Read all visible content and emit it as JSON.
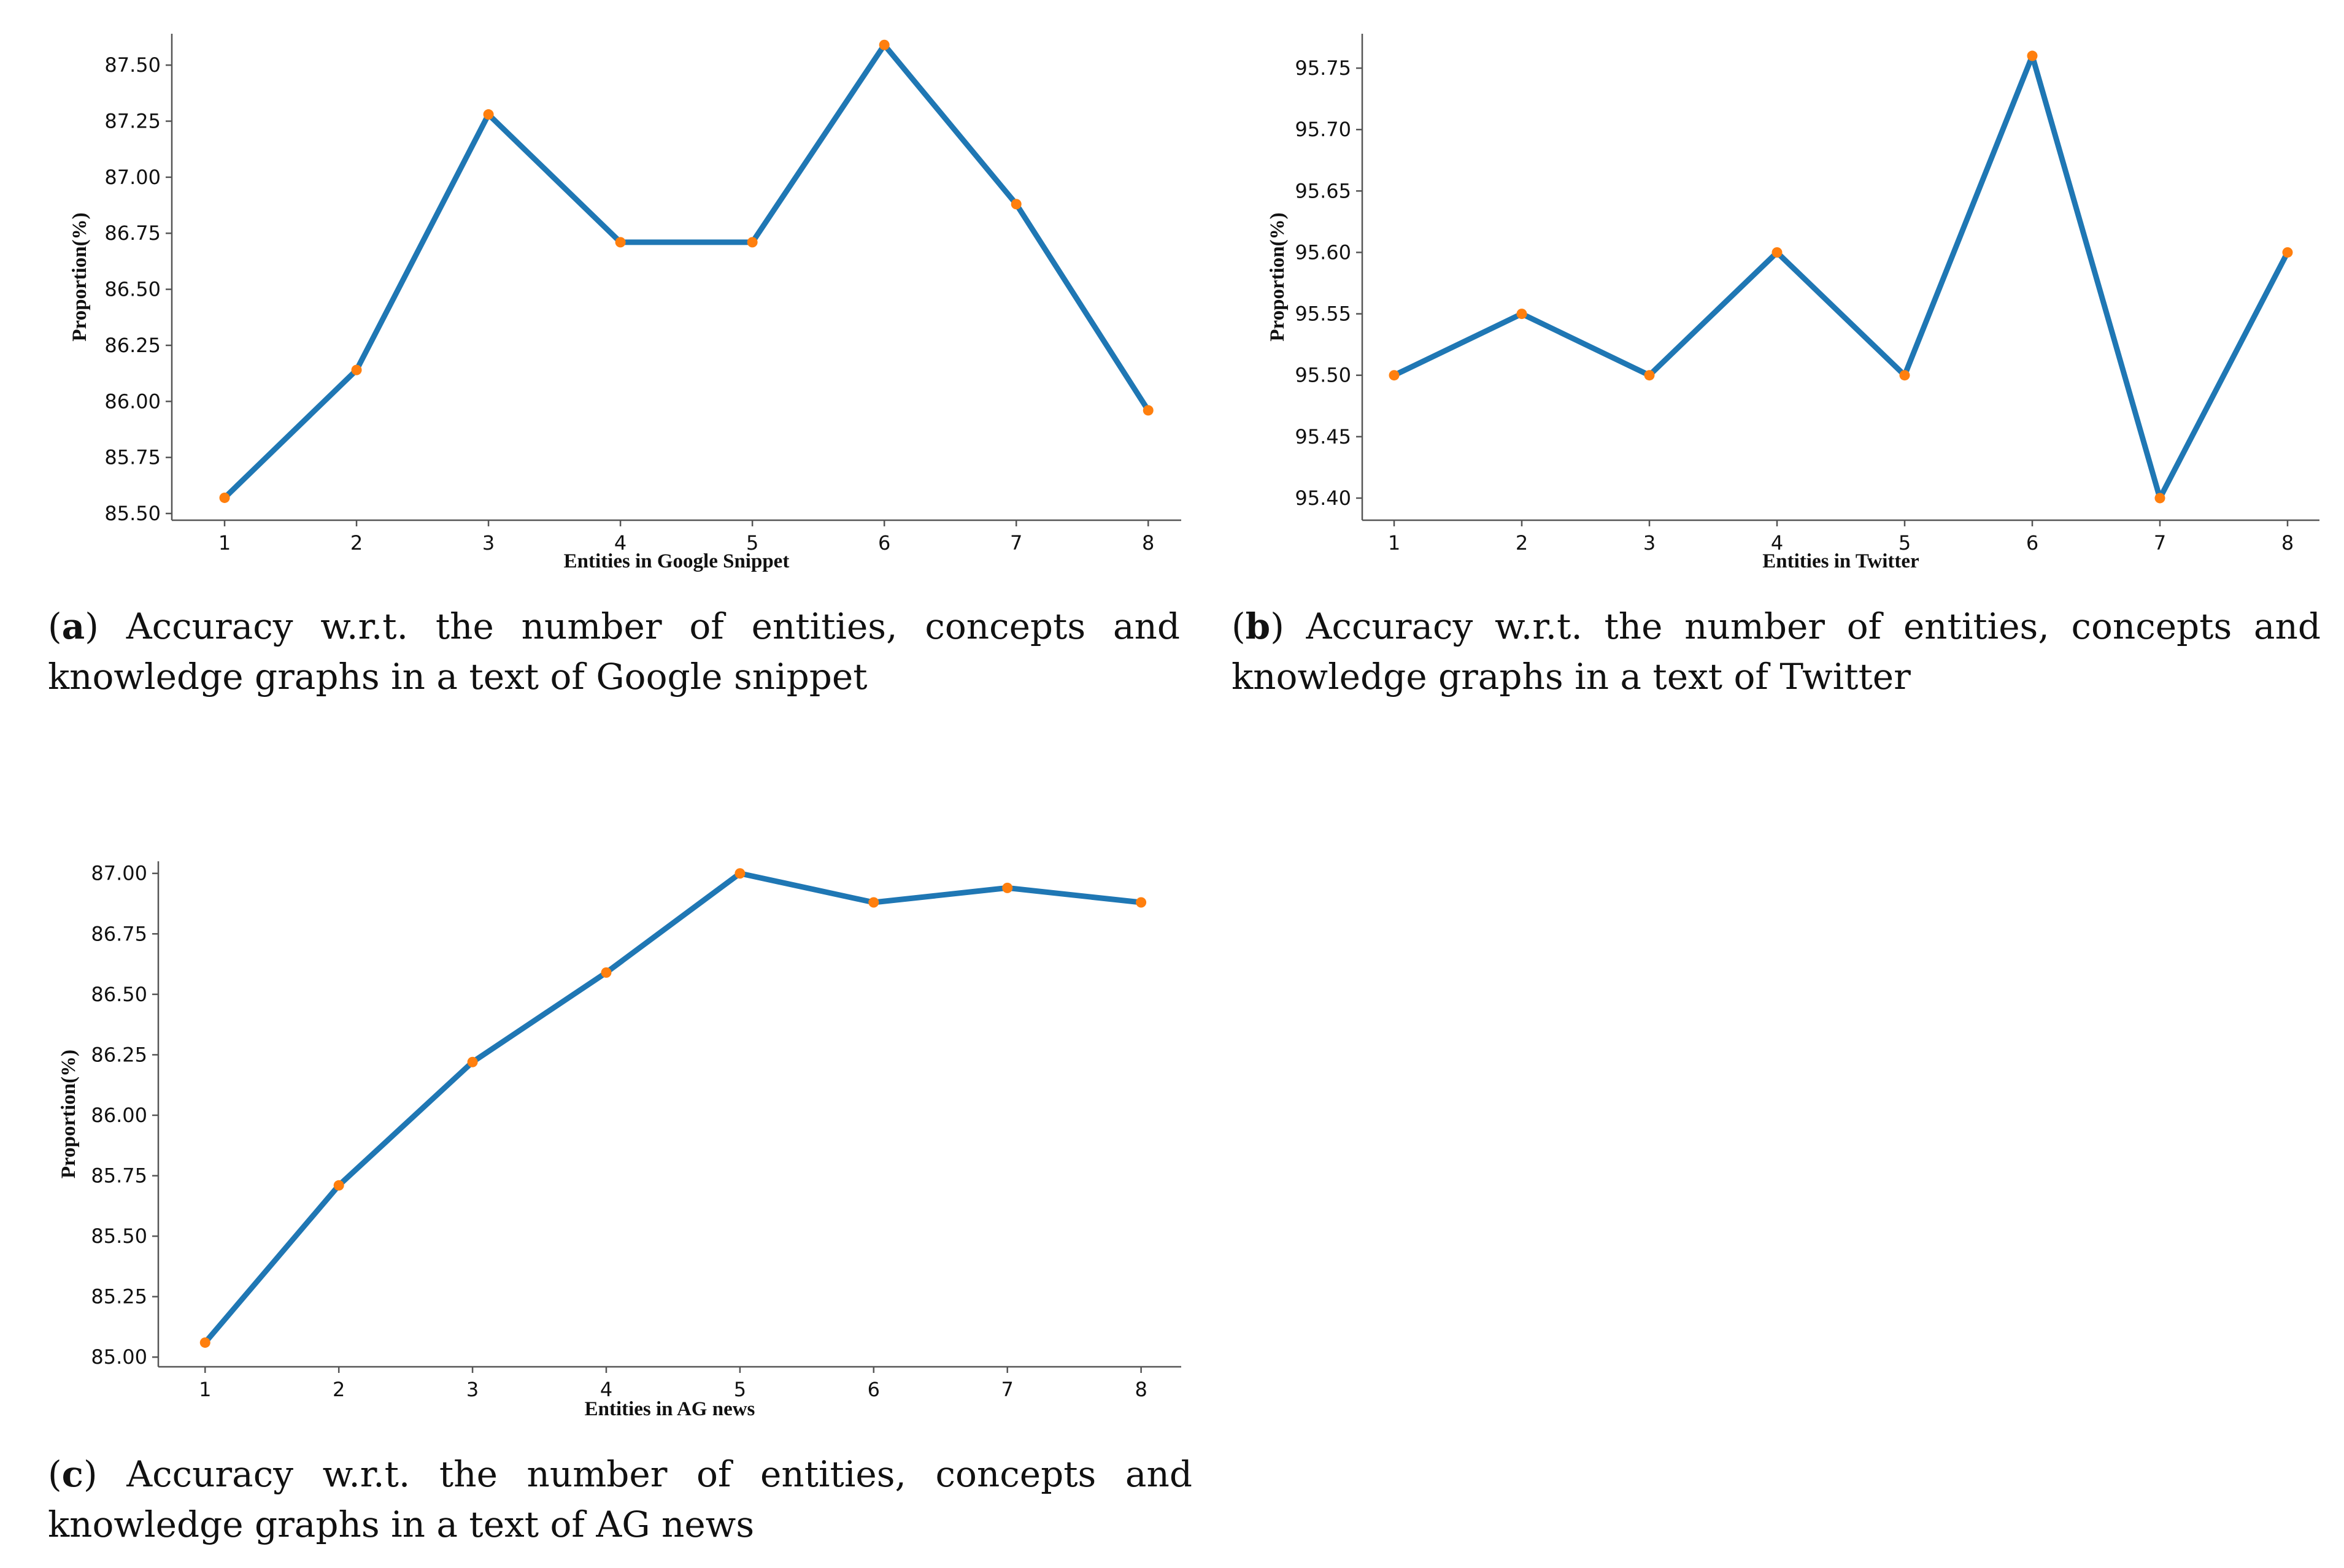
{
  "colors": {
    "line": "#1f77b4",
    "marker": "#ff7f0e",
    "axis": "#555555"
  },
  "chart_data": [
    {
      "type": "line",
      "ylabel": "Proportion(%)",
      "xlabel": "Entities in Google Snippet",
      "x": [
        1,
        2,
        3,
        4,
        5,
        6,
        7,
        8
      ],
      "series": [
        {
          "values": [
            85.57,
            86.14,
            87.28,
            86.71,
            86.71,
            87.59,
            86.88,
            85.96
          ]
        }
      ],
      "xlim": [
        0.6,
        8.25
      ],
      "ylim": [
        85.47,
        87.64
      ],
      "yticks": [
        85.5,
        85.75,
        86.0,
        86.25,
        86.5,
        86.75,
        87.0,
        87.25,
        87.5
      ],
      "ytick_labels": [
        "85.50",
        "85.75",
        "86.00",
        "86.25",
        "86.50",
        "86.75",
        "87.00",
        "87.25",
        "87.50"
      ],
      "xticks": [
        1,
        2,
        3,
        4,
        5,
        6,
        7,
        8
      ],
      "xtick_labels": [
        "1",
        "2",
        "3",
        "4",
        "5",
        "6",
        "7",
        "8"
      ],
      "grid": false
    },
    {
      "type": "line",
      "ylabel": "Proportion(%)",
      "xlabel": "Entities in Twitter",
      "x": [
        1,
        2,
        3,
        4,
        5,
        6,
        7,
        8
      ],
      "series": [
        {
          "values": [
            95.5,
            95.55,
            95.5,
            95.6,
            95.5,
            95.76,
            95.4,
            95.6
          ]
        }
      ],
      "xlim": [
        0.75,
        8.25
      ],
      "ylim": [
        95.382,
        95.778
      ],
      "yticks": [
        95.4,
        95.45,
        95.5,
        95.55,
        95.6,
        95.65,
        95.7,
        95.75
      ],
      "ytick_labels": [
        "95.40",
        "95.45",
        "95.50",
        "95.55",
        "95.60",
        "95.65",
        "95.70",
        "95.75"
      ],
      "xticks": [
        1,
        2,
        3,
        4,
        5,
        6,
        7,
        8
      ],
      "xtick_labels": [
        "1",
        "2",
        "3",
        "4",
        "5",
        "6",
        "7",
        "8"
      ],
      "grid": false
    },
    {
      "type": "line",
      "ylabel": "Proportion(%)",
      "xlabel": "Entities in AG news",
      "x": [
        1,
        2,
        3,
        4,
        5,
        6,
        7,
        8
      ],
      "series": [
        {
          "values": [
            85.06,
            85.71,
            86.22,
            86.59,
            87.0,
            86.88,
            86.94,
            86.88
          ]
        }
      ],
      "xlim": [
        0.65,
        8.3
      ],
      "ylim": [
        84.96,
        87.05
      ],
      "yticks": [
        85.0,
        85.25,
        85.5,
        85.75,
        86.0,
        86.25,
        86.5,
        86.75,
        87.0
      ],
      "ytick_labels": [
        "85.00",
        "85.25",
        "85.50",
        "85.75",
        "86.00",
        "86.25",
        "86.50",
        "86.75",
        "87.00"
      ],
      "xticks": [
        1,
        2,
        3,
        4,
        5,
        6,
        7,
        8
      ],
      "xtick_labels": [
        "1",
        "2",
        "3",
        "4",
        "5",
        "6",
        "7",
        "8"
      ],
      "grid": false
    }
  ],
  "captions": [
    {
      "letter": "a",
      "line1_rest": "Accuracy w.r.t.  the number of entities, concepts and",
      "line2": "knowledge graphs in a text of Google snippet"
    },
    {
      "letter": "b",
      "line1_rest": "Accuracy w.r.t.  the number of entities, concepts and",
      "line2": "knowledge graphs in a text of Twitter"
    },
    {
      "letter": "c",
      "line1_rest": "Accuracy w.r.t.  the number of entities, concepts and",
      "line2": "knowledge graphs in a text of AG news"
    }
  ]
}
